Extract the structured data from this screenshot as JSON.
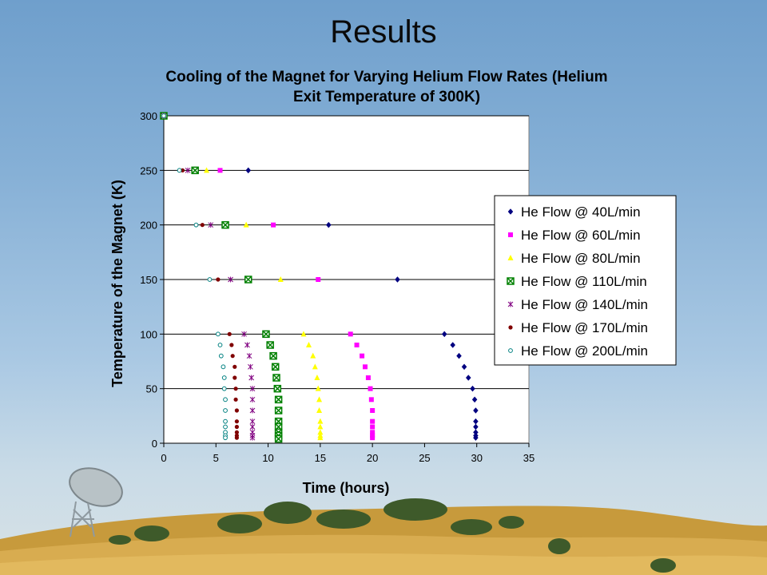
{
  "slide": {
    "title": "Results"
  },
  "chart_data": {
    "type": "scatter",
    "title": [
      "Cooling of the Magnet for Varying Helium Flow Rates (Helium",
      "Exit Temperature of 300K)"
    ],
    "xlabel": "Time (hours)",
    "ylabel": "Temperature of the Magnet (K)",
    "xlim": [
      0,
      35
    ],
    "ylim": [
      0,
      300
    ],
    "xticks": [
      "0",
      "5",
      "10",
      "15",
      "20",
      "25",
      "30",
      "35"
    ],
    "yticks": [
      "0",
      "50",
      "100",
      "150",
      "200",
      "250",
      "300"
    ],
    "horizontal_gridlines": true,
    "legend_position": "right",
    "series": [
      {
        "name": "He Flow @ 40L/min",
        "marker": "diamond",
        "color": "#000080",
        "points": [
          [
            0,
            300
          ],
          [
            8.1,
            250
          ],
          [
            15.8,
            200
          ],
          [
            22.4,
            150
          ],
          [
            26.9,
            100
          ],
          [
            27.7,
            90
          ],
          [
            28.3,
            80
          ],
          [
            28.8,
            70
          ],
          [
            29.2,
            60
          ],
          [
            29.6,
            50
          ],
          [
            29.8,
            40
          ],
          [
            29.9,
            30
          ],
          [
            29.9,
            20
          ],
          [
            29.9,
            15
          ],
          [
            29.9,
            10
          ],
          [
            29.9,
            7
          ],
          [
            29.9,
            5
          ]
        ]
      },
      {
        "name": "He Flow @ 60L/min",
        "marker": "square",
        "color": "#ff00ff",
        "points": [
          [
            0,
            300
          ],
          [
            5.4,
            250
          ],
          [
            10.5,
            200
          ],
          [
            14.8,
            150
          ],
          [
            17.9,
            100
          ],
          [
            18.5,
            90
          ],
          [
            19.0,
            80
          ],
          [
            19.3,
            70
          ],
          [
            19.6,
            60
          ],
          [
            19.8,
            50
          ],
          [
            19.9,
            40
          ],
          [
            20.0,
            30
          ],
          [
            20.0,
            20
          ],
          [
            20.0,
            15
          ],
          [
            20.0,
            10
          ],
          [
            20.0,
            7
          ],
          [
            20.0,
            5
          ]
        ]
      },
      {
        "name": "He Flow @ 80L/min",
        "marker": "triangle",
        "color": "#ffff00",
        "points": [
          [
            0,
            300
          ],
          [
            4.1,
            250
          ],
          [
            7.9,
            200
          ],
          [
            11.2,
            150
          ],
          [
            13.4,
            100
          ],
          [
            13.9,
            90
          ],
          [
            14.3,
            80
          ],
          [
            14.5,
            70
          ],
          [
            14.7,
            60
          ],
          [
            14.8,
            50
          ],
          [
            14.9,
            40
          ],
          [
            14.9,
            30
          ],
          [
            15.0,
            20
          ],
          [
            15.0,
            15
          ],
          [
            15.0,
            10
          ],
          [
            15.0,
            7
          ],
          [
            15.0,
            5
          ]
        ]
      },
      {
        "name": "He Flow @ 110L/min",
        "marker": "box-x",
        "color": "#008000",
        "points": [
          [
            0,
            300
          ],
          [
            3.0,
            250
          ],
          [
            5.9,
            200
          ],
          [
            8.1,
            150
          ],
          [
            9.8,
            100
          ],
          [
            10.2,
            90
          ],
          [
            10.5,
            80
          ],
          [
            10.7,
            70
          ],
          [
            10.8,
            60
          ],
          [
            10.9,
            50
          ],
          [
            11.0,
            40
          ],
          [
            11.0,
            30
          ],
          [
            11.0,
            20
          ],
          [
            11.0,
            15
          ],
          [
            11.0,
            10
          ],
          [
            11.0,
            7
          ],
          [
            11.0,
            4
          ]
        ]
      },
      {
        "name": "He Flow @ 140L/min",
        "marker": "star",
        "color": "#800080",
        "points": [
          [
            0,
            300
          ],
          [
            2.3,
            250
          ],
          [
            4.5,
            200
          ],
          [
            6.4,
            150
          ],
          [
            7.7,
            100
          ],
          [
            8.0,
            90
          ],
          [
            8.2,
            80
          ],
          [
            8.3,
            70
          ],
          [
            8.4,
            60
          ],
          [
            8.5,
            50
          ],
          [
            8.5,
            40
          ],
          [
            8.5,
            30
          ],
          [
            8.5,
            20
          ],
          [
            8.5,
            15
          ],
          [
            8.5,
            10
          ],
          [
            8.5,
            7
          ],
          [
            8.5,
            5
          ]
        ]
      },
      {
        "name": "He Flow @ 170L/min",
        "marker": "circle",
        "color": "#800000",
        "points": [
          [
            0,
            300
          ],
          [
            1.8,
            250
          ],
          [
            3.7,
            200
          ],
          [
            5.2,
            150
          ],
          [
            6.3,
            100
          ],
          [
            6.5,
            90
          ],
          [
            6.6,
            80
          ],
          [
            6.8,
            70
          ],
          [
            6.8,
            60
          ],
          [
            6.9,
            50
          ],
          [
            6.9,
            40
          ],
          [
            7.0,
            30
          ],
          [
            7.0,
            20
          ],
          [
            7.0,
            15
          ],
          [
            7.0,
            10
          ],
          [
            7.0,
            7
          ],
          [
            7.0,
            5
          ]
        ]
      },
      {
        "name": "He Flow @ 200L/min",
        "marker": "open-circle",
        "color": "#008080",
        "points": [
          [
            0,
            300
          ],
          [
            1.5,
            250
          ],
          [
            3.1,
            200
          ],
          [
            4.4,
            150
          ],
          [
            5.2,
            100
          ],
          [
            5.4,
            90
          ],
          [
            5.5,
            80
          ],
          [
            5.7,
            70
          ],
          [
            5.8,
            60
          ],
          [
            5.8,
            50
          ],
          [
            5.9,
            40
          ],
          [
            5.9,
            30
          ],
          [
            5.9,
            20
          ],
          [
            5.9,
            15
          ],
          [
            5.9,
            10
          ],
          [
            5.9,
            7
          ],
          [
            5.9,
            5
          ]
        ]
      }
    ]
  }
}
